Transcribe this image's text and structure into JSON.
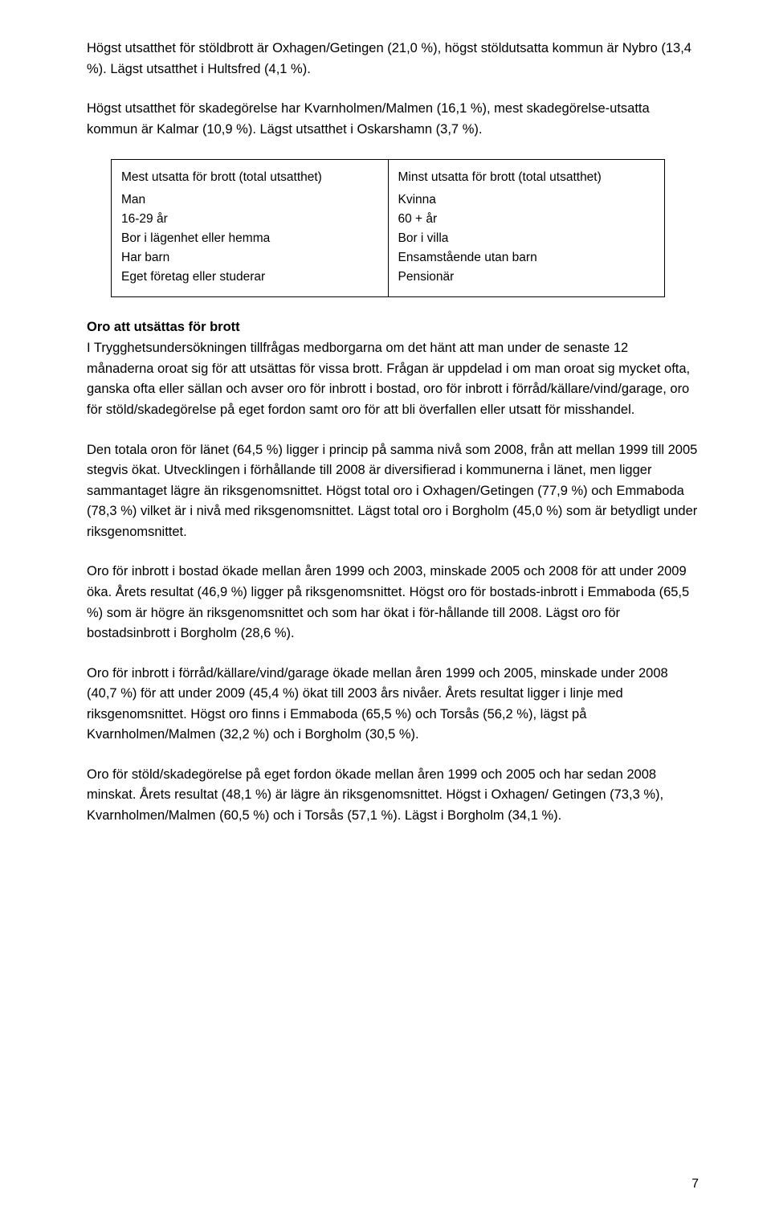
{
  "para1": "Högst utsatthet för stöldbrott är Oxhagen/Getingen (21,0 %), högst stöldutsatta kommun är Nybro (13,4 %). Lägst utsatthet i Hultsfred (4,1 %).",
  "para2": "Högst utsatthet för skadegörelse har Kvarnholmen/Malmen (16,1 %), mest skadegörelse-utsatta kommun är Kalmar (10,9 %). Lägst utsatthet i Oskarshamn (3,7 %).",
  "table": {
    "left": {
      "title": "Mest utsatta för brott (total utsatthet)",
      "lines": [
        "Man",
        "16-29 år",
        "Bor i lägenhet eller hemma",
        "Har barn",
        "Eget företag eller studerar"
      ]
    },
    "right": {
      "title": "Minst utsatta för brott (total utsatthet)",
      "lines": [
        "Kvinna",
        "60 + år",
        "Bor i villa",
        "Ensamstående utan barn",
        "Pensionär"
      ]
    },
    "border_color": "#000000",
    "font_size_pt": 12
  },
  "heading1": "Oro att utsättas för brott",
  "para3": "I Trygghetsundersökningen tillfrågas medborgarna om det hänt att man under de senaste 12 månaderna oroat sig för att utsättas för vissa brott. Frågan är uppdelad i om man oroat sig mycket ofta, ganska ofta eller sällan och avser oro för inbrott i bostad, oro för inbrott i förråd/källare/vind/garage, oro för stöld/skadegörelse på eget fordon samt oro för att bli överfallen eller utsatt för misshandel.",
  "para4": "Den totala oron för länet (64,5 %) ligger i princip på samma nivå som 2008, från att mellan 1999 till 2005 stegvis ökat. Utvecklingen i förhållande till 2008 är diversifierad i kommunerna i länet, men ligger sammantaget lägre än riksgenomsnittet. Högst total oro i Oxhagen/Getingen (77,9 %) och Emmaboda (78,3 %) vilket är i nivå med riksgenomsnittet. Lägst total oro i Borgholm (45,0 %) som är betydligt under riksgenomsnittet.",
  "para5": "Oro för inbrott i bostad ökade mellan åren 1999 och 2003, minskade 2005 och 2008 för att under 2009 öka. Årets resultat (46,9 %) ligger på riksgenomsnittet. Högst oro för bostads-inbrott i Emmaboda (65,5 %) som är högre än riksgenomsnittet och som har ökat i för-hållande till 2008. Lägst oro för bostadsinbrott i Borgholm (28,6 %).",
  "para6": "Oro för inbrott i förråd/källare/vind/garage ökade mellan åren 1999 och 2005, minskade under 2008 (40,7 %) för att under 2009 (45,4 %) ökat till 2003 års nivåer. Årets resultat ligger i linje med riksgenomsnittet. Högst oro finns i Emmaboda (65,5 %) och Torsås (56,2 %), lägst på Kvarnholmen/Malmen (32,2 %) och i Borgholm (30,5 %).",
  "para7": "Oro för stöld/skadegörelse på eget fordon ökade mellan åren 1999 och 2005 och har sedan 2008 minskat. Årets resultat (48,1 %) är lägre än riksgenomsnittet. Högst i Oxhagen/ Getingen (73,3 %), Kvarnholmen/Malmen (60,5 %) och i Torsås (57,1 %). Lägst i Borgholm (34,1 %).",
  "page_number": "7",
  "style": {
    "background_color": "#ffffff",
    "text_color": "#000000",
    "body_font_size_pt": 12,
    "font_family": "Arial"
  }
}
